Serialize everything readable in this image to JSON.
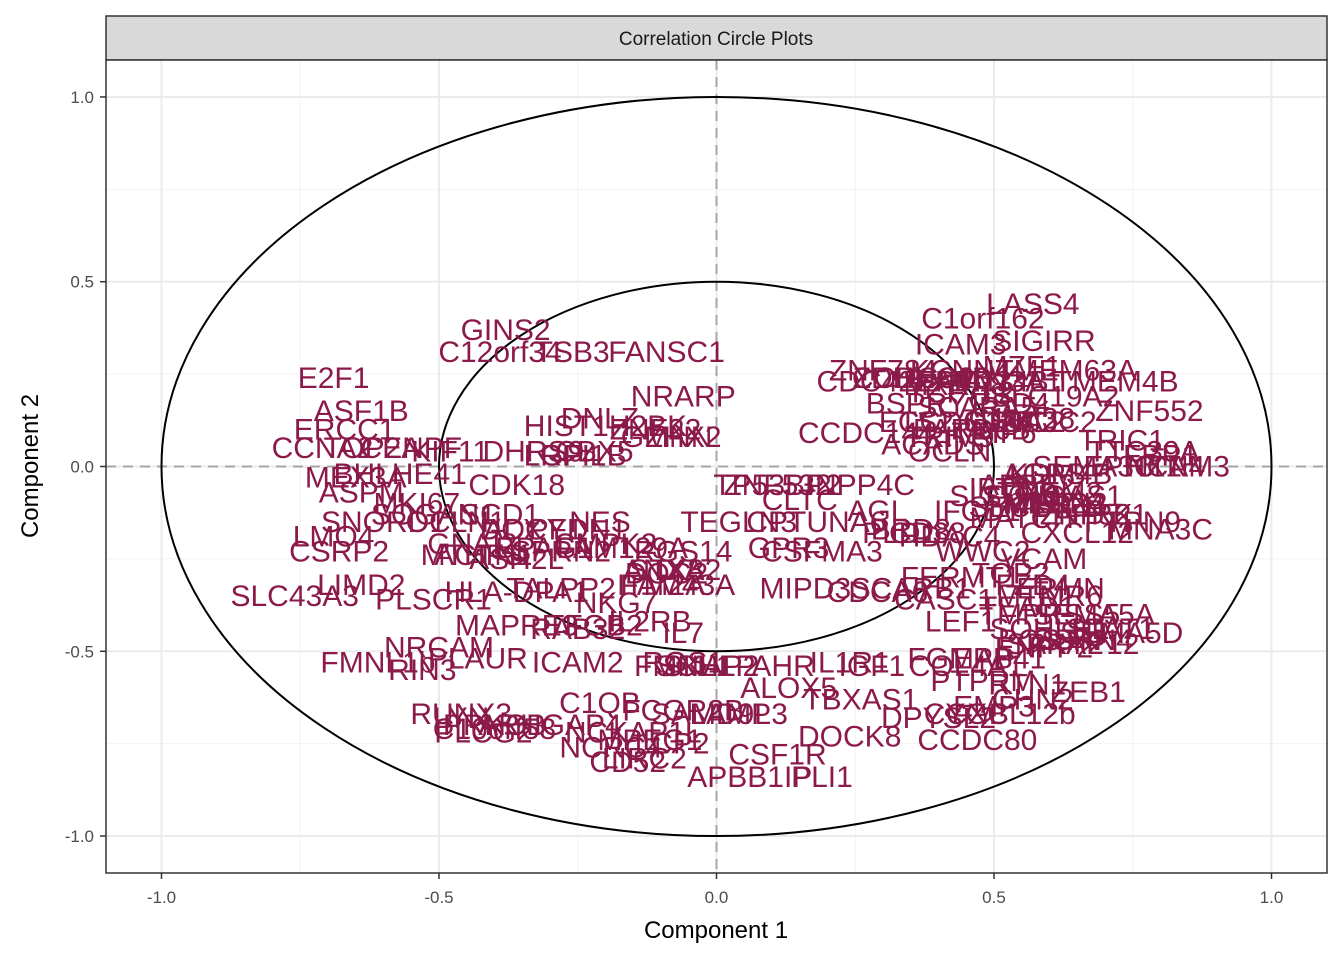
{
  "chart_data": {
    "type": "scatter",
    "title": "Correlation Circle Plots",
    "xlabel": "Component  1",
    "ylabel": "Component  2",
    "xlim": [
      -1.1,
      1.1
    ],
    "ylim": [
      -1.1,
      1.1
    ],
    "xticks": [
      -1.0,
      -0.5,
      0.0,
      0.5,
      1.0
    ],
    "yticks": [
      -1.0,
      -0.5,
      0.0,
      0.5,
      1.0
    ],
    "xtick_labels": [
      "-1.0",
      "-0.5",
      "0.0",
      "0.5",
      "1.0"
    ],
    "ytick_labels": [
      "-1.0",
      "-0.5",
      "0.0",
      "0.5",
      "1.0"
    ],
    "grid": true,
    "circles": [
      1.0,
      0.5
    ],
    "reference_lines": [
      0,
      0
    ],
    "label_color": "#8B1A4A",
    "points": [
      {
        "label": "LASS4",
        "x": 0.57,
        "y": 0.44
      },
      {
        "label": "C1orf162",
        "x": 0.48,
        "y": 0.4
      },
      {
        "label": "ICAM3",
        "x": 0.44,
        "y": 0.33
      },
      {
        "label": "SIGIRR",
        "x": 0.59,
        "y": 0.34
      },
      {
        "label": "TMEM63A",
        "x": 0.63,
        "y": 0.26
      },
      {
        "label": "ZNF784",
        "x": 0.3,
        "y": 0.26
      },
      {
        "label": "CCDC64B",
        "x": 0.37,
        "y": 0.24
      },
      {
        "label": "KCNN4",
        "x": 0.44,
        "y": 0.26
      },
      {
        "label": "BTN3A1",
        "x": 0.52,
        "y": 0.23
      },
      {
        "label": "CDC42EP5",
        "x": 0.32,
        "y": 0.23
      },
      {
        "label": "MZF1",
        "x": 0.55,
        "y": 0.27
      },
      {
        "label": "ZDHHC20",
        "x": 0.37,
        "y": 0.24
      },
      {
        "label": "MXRA8",
        "x": 0.43,
        "y": 0.22
      },
      {
        "label": "FAM134B",
        "x": 0.48,
        "y": 0.23
      },
      {
        "label": "BSPRY",
        "x": 0.36,
        "y": 0.17
      },
      {
        "label": "PSD4",
        "x": 0.53,
        "y": 0.17
      },
      {
        "label": "SLC19A2",
        "x": 0.61,
        "y": 0.19
      },
      {
        "label": "TCF7L2",
        "x": 0.44,
        "y": 0.2
      },
      {
        "label": "TMEM4B",
        "x": 0.72,
        "y": 0.23
      },
      {
        "label": "ZNF552",
        "x": 0.78,
        "y": 0.15
      },
      {
        "label": "C1orf38",
        "x": 0.55,
        "y": 0.13
      },
      {
        "label": "CCDC124",
        "x": 0.45,
        "y": 0.12
      },
      {
        "label": "STAC2",
        "x": 0.53,
        "y": 0.12
      },
      {
        "label": "STC2",
        "x": 0.56,
        "y": 0.12
      },
      {
        "label": "PARD6B",
        "x": 0.46,
        "y": 0.1
      },
      {
        "label": "DNAJC2",
        "x": 0.58,
        "y": 0.12
      },
      {
        "label": "SCARA5",
        "x": 0.47,
        "y": 0.16
      },
      {
        "label": "TRIP6",
        "x": 0.5,
        "y": 0.09
      },
      {
        "label": "TRIM9",
        "x": 0.42,
        "y": 0.08
      },
      {
        "label": "ACADS",
        "x": 0.39,
        "y": 0.06
      },
      {
        "label": "CCDC144",
        "x": 0.27,
        "y": 0.09
      },
      {
        "label": "OCLN",
        "x": 0.42,
        "y": 0.04
      },
      {
        "label": "ETS2",
        "x": 0.36,
        "y": 0.12
      },
      {
        "label": "TTC39A",
        "x": 0.77,
        "y": 0.04
      },
      {
        "label": "FBP1",
        "x": 0.8,
        "y": 0.03
      },
      {
        "label": "NTN4",
        "x": 0.81,
        "y": 0.0
      },
      {
        "label": "SEMA3C",
        "x": 0.68,
        "y": 0.0
      },
      {
        "label": "EPHX1",
        "x": 0.75,
        "y": 0.0
      },
      {
        "label": "CAM3",
        "x": 0.85,
        "y": 0.0
      },
      {
        "label": "KDM4B",
        "x": 0.62,
        "y": -0.02
      },
      {
        "label": "AGPS",
        "x": 0.59,
        "y": -0.02
      },
      {
        "label": "APBB2",
        "x": 0.56,
        "y": -0.05
      },
      {
        "label": "IFT8",
        "x": 0.51,
        "y": -0.06
      },
      {
        "label": "SLC6A9",
        "x": 0.52,
        "y": -0.08
      },
      {
        "label": "TRIC1",
        "x": 0.73,
        "y": 0.07
      },
      {
        "label": "MKRN3",
        "x": 0.61,
        "y": -0.1
      },
      {
        "label": "GAS1",
        "x": 0.66,
        "y": -0.08
      },
      {
        "label": "TMEM2",
        "x": 0.6,
        "y": -0.07
      },
      {
        "label": "PTPRK",
        "x": 0.66,
        "y": -0.13
      },
      {
        "label": "MED24",
        "x": 0.61,
        "y": -0.1
      },
      {
        "label": "SUN1",
        "x": 0.55,
        "y": -0.08
      },
      {
        "label": "SEC14L1",
        "x": 0.57,
        "y": -0.11
      },
      {
        "label": "IFCD1",
        "x": 0.47,
        "y": -0.12
      },
      {
        "label": "MATCH",
        "x": 0.55,
        "y": -0.14
      },
      {
        "label": "MNA3C",
        "x": 0.8,
        "y": -0.17
      },
      {
        "label": "PTPN9",
        "x": 0.75,
        "y": -0.15
      },
      {
        "label": "CXCL12",
        "x": 0.65,
        "y": -0.18
      },
      {
        "label": "ZNF521",
        "x": 0.68,
        "y": -0.13
      },
      {
        "label": "VCAM",
        "x": 0.59,
        "y": -0.25
      },
      {
        "label": "WWC2",
        "x": 0.48,
        "y": -0.23
      },
      {
        "label": "HDAC4",
        "x": 0.42,
        "y": -0.19
      },
      {
        "label": "TOP2",
        "x": 0.53,
        "y": -0.29
      },
      {
        "label": "CD38",
        "x": 0.38,
        "y": -0.18
      },
      {
        "label": "PLD1",
        "x": 0.33,
        "y": -0.18
      },
      {
        "label": "FERMT1",
        "x": 0.44,
        "y": -0.3
      },
      {
        "label": "FZD4",
        "x": 0.57,
        "y": -0.32
      },
      {
        "label": "ERMN",
        "x": 0.62,
        "y": -0.33
      },
      {
        "label": "MTMR6",
        "x": 0.6,
        "y": -0.35
      },
      {
        "label": "TEAD1",
        "x": 0.56,
        "y": -0.38
      },
      {
        "label": "CASC1",
        "x": 0.41,
        "y": -0.36
      },
      {
        "label": "CDCA6",
        "x": 0.29,
        "y": -0.34
      },
      {
        "label": "SCARB1",
        "x": 0.35,
        "y": -0.33
      },
      {
        "label": "TMPRSS5",
        "x": 0.6,
        "y": -0.4
      },
      {
        "label": "SEMA5A",
        "x": 0.68,
        "y": -0.4
      },
      {
        "label": "STAT1",
        "x": 0.71,
        "y": -0.44
      },
      {
        "label": "SEMA5D",
        "x": 0.73,
        "y": -0.45
      },
      {
        "label": "SOHLH1",
        "x": 0.6,
        "y": -0.44
      },
      {
        "label": "LEF1",
        "x": 0.44,
        "y": -0.42
      },
      {
        "label": "POSTN",
        "x": 0.6,
        "y": -0.47
      },
      {
        "label": "SSRN4",
        "x": 0.66,
        "y": -0.47
      },
      {
        "label": "AKAP12",
        "x": 0.66,
        "y": -0.48
      },
      {
        "label": "SPRY2",
        "x": 0.61,
        "y": -0.48
      },
      {
        "label": "ENPP2",
        "x": 0.59,
        "y": -0.49
      },
      {
        "label": "FGMAP",
        "x": 0.44,
        "y": -0.52
      },
      {
        "label": "COL4A1",
        "x": 0.45,
        "y": -0.54
      },
      {
        "label": "EPB41",
        "x": 0.51,
        "y": -0.52
      },
      {
        "label": "PTPRM",
        "x": 0.48,
        "y": -0.58
      },
      {
        "label": "ZEB1",
        "x": 0.67,
        "y": -0.61
      },
      {
        "label": "RTN1",
        "x": 0.56,
        "y": -0.59
      },
      {
        "label": "CHN2",
        "x": 0.57,
        "y": -0.63
      },
      {
        "label": "AHR",
        "x": 0.12,
        "y": -0.54
      },
      {
        "label": "IL1R1",
        "x": 0.24,
        "y": -0.53
      },
      {
        "label": "IGF1",
        "x": 0.28,
        "y": -0.54
      },
      {
        "label": "ALOX5",
        "x": 0.13,
        "y": -0.6
      },
      {
        "label": "TBXAS1",
        "x": 0.26,
        "y": -0.63
      },
      {
        "label": "DOCK8",
        "x": 0.24,
        "y": -0.73
      },
      {
        "label": "DPYSL2",
        "x": 0.4,
        "y": -0.68
      },
      {
        "label": "CYGB",
        "x": 0.45,
        "y": -0.67
      },
      {
        "label": "EMP3",
        "x": 0.5,
        "y": -0.65
      },
      {
        "label": "CXCL12b",
        "x": 0.53,
        "y": -0.67
      },
      {
        "label": "CCDC80",
        "x": 0.47,
        "y": -0.74
      },
      {
        "label": "CSF1R",
        "x": 0.11,
        "y": -0.78
      },
      {
        "label": "APBB1IP",
        "x": 0.06,
        "y": -0.84
      },
      {
        "label": "PLI1",
        "x": 0.19,
        "y": -0.84
      },
      {
        "label": "MPEG1",
        "x": -0.12,
        "y": -0.74
      },
      {
        "label": "NCKAP1L",
        "x": -0.15,
        "y": -0.72
      },
      {
        "label": "LCP2",
        "x": -0.08,
        "y": -0.75
      },
      {
        "label": "FCGR2B",
        "x": -0.06,
        "y": -0.66
      },
      {
        "label": "SAMD9L",
        "x": -0.01,
        "y": -0.67
      },
      {
        "label": "LAMP3",
        "x": 0.04,
        "y": -0.67
      },
      {
        "label": "C1QB",
        "x": -0.21,
        "y": -0.64
      },
      {
        "label": "NCRC4",
        "x": -0.19,
        "y": -0.76
      },
      {
        "label": "LIRC2",
        "x": -0.13,
        "y": -0.79
      },
      {
        "label": "CD52",
        "x": -0.16,
        "y": -0.8
      },
      {
        "label": "SKAP2",
        "x": -0.01,
        "y": -0.54
      },
      {
        "label": "SCHLP",
        "x": -0.02,
        "y": -0.54
      },
      {
        "label": "FMNL1",
        "x": -0.06,
        "y": -0.54
      },
      {
        "label": "RGS1",
        "x": -0.06,
        "y": -0.53
      },
      {
        "label": "ICAM2",
        "x": -0.25,
        "y": -0.53
      },
      {
        "label": "RUNX3",
        "x": -0.46,
        "y": -0.67
      },
      {
        "label": "PRKCB",
        "x": -0.4,
        "y": -0.7
      },
      {
        "label": "ARHGAP4",
        "x": -0.3,
        "y": -0.7
      },
      {
        "label": "C10orf58",
        "x": -0.4,
        "y": -0.71
      },
      {
        "label": "LYN",
        "x": -0.46,
        "y": -0.68
      },
      {
        "label": "PLCG2",
        "x": -0.42,
        "y": -0.72
      },
      {
        "label": "FMNL1b",
        "x": -0.61,
        "y": -0.53
      },
      {
        "label": "RIN3",
        "x": -0.53,
        "y": -0.55
      },
      {
        "label": "NRCAM",
        "x": -0.5,
        "y": -0.49
      },
      {
        "label": "PLAUR",
        "x": -0.43,
        "y": -0.52
      },
      {
        "label": "MAPRE3",
        "x": -0.36,
        "y": -0.43
      },
      {
        "label": "TFGB2",
        "x": -0.22,
        "y": -0.43
      },
      {
        "label": "RAB32",
        "x": -0.25,
        "y": -0.44
      },
      {
        "label": "IL7",
        "x": -0.06,
        "y": -0.45
      },
      {
        "label": "IL2RB",
        "x": -0.12,
        "y": -0.42
      },
      {
        "label": "SLC43A3",
        "x": -0.76,
        "y": -0.35
      },
      {
        "label": "PLSCR1",
        "x": -0.51,
        "y": -0.36
      },
      {
        "label": "TALPP2",
        "x": -0.28,
        "y": -0.33
      },
      {
        "label": "NKG7",
        "x": -0.18,
        "y": -0.37
      },
      {
        "label": "ITM2A",
        "x": -0.1,
        "y": -0.32
      },
      {
        "label": "FAM43A",
        "x": -0.07,
        "y": -0.32
      },
      {
        "label": "LIMD2",
        "x": -0.64,
        "y": -0.32
      },
      {
        "label": "HLA-DPA1",
        "x": -0.36,
        "y": -0.34
      },
      {
        "label": "ANXA2",
        "x": -0.08,
        "y": -0.28
      },
      {
        "label": "CSRP2",
        "x": -0.68,
        "y": -0.23
      },
      {
        "label": "LMO4",
        "x": -0.69,
        "y": -0.19
      },
      {
        "label": "SNORD1",
        "x": -0.6,
        "y": -0.15
      },
      {
        "label": "ACTN1",
        "x": -0.42,
        "y": -0.24
      },
      {
        "label": "ASH2L",
        "x": -0.36,
        "y": -0.25
      },
      {
        "label": "BPAG1",
        "x": -0.31,
        "y": -0.22
      },
      {
        "label": "SPRN2",
        "x": -0.28,
        "y": -0.23
      },
      {
        "label": "FAM129A",
        "x": -0.17,
        "y": -0.22
      },
      {
        "label": "CMPK2",
        "x": -0.2,
        "y": -0.21
      },
      {
        "label": "RGS14",
        "x": -0.06,
        "y": -0.23
      },
      {
        "label": "STX8",
        "x": -0.09,
        "y": -0.28
      },
      {
        "label": "DOC2",
        "x": -0.09,
        "y": -0.29
      },
      {
        "label": "NES",
        "x": -0.21,
        "y": -0.15
      },
      {
        "label": "PFDN1",
        "x": -0.25,
        "y": -0.17
      },
      {
        "label": "ADCY1",
        "x": -0.33,
        "y": -0.17
      },
      {
        "label": "DCX",
        "x": -0.37,
        "y": -0.17
      },
      {
        "label": "GNAI2",
        "x": -0.44,
        "y": -0.21
      },
      {
        "label": "MTHFS",
        "x": -0.44,
        "y": -0.24
      },
      {
        "label": "OCLN1",
        "x": -0.47,
        "y": -0.15
      },
      {
        "label": "SOGAN1",
        "x": -0.51,
        "y": -0.13
      },
      {
        "label": "SCD1",
        "x": -0.39,
        "y": -0.13
      },
      {
        "label": "MKI67",
        "x": -0.54,
        "y": -0.1
      },
      {
        "label": "ASPM",
        "x": -0.64,
        "y": -0.07
      },
      {
        "label": "MEX3A",
        "x": -0.65,
        "y": -0.03
      },
      {
        "label": "CDK18",
        "x": -0.36,
        "y": -0.05
      },
      {
        "label": "BHLHE41",
        "x": -0.57,
        "y": -0.02
      },
      {
        "label": "CCNA2",
        "x": -0.71,
        "y": 0.05
      },
      {
        "label": "TOP2A",
        "x": -0.62,
        "y": 0.05
      },
      {
        "label": "CENPF",
        "x": -0.55,
        "y": 0.05
      },
      {
        "label": "KIF11",
        "x": -0.48,
        "y": 0.04
      },
      {
        "label": "DHRS9",
        "x": -0.33,
        "y": 0.04
      },
      {
        "label": "LRP4",
        "x": -0.28,
        "y": 0.03
      },
      {
        "label": "GFI1B",
        "x": -0.24,
        "y": 0.03
      },
      {
        "label": "CBX5",
        "x": -0.22,
        "y": 0.04
      },
      {
        "label": "HIST1H2BK",
        "x": -0.2,
        "y": 0.11
      },
      {
        "label": "DNLZ",
        "x": -0.21,
        "y": 0.13
      },
      {
        "label": "ZNF22",
        "x": -0.11,
        "y": 0.1
      },
      {
        "label": "GMNN",
        "x": -0.09,
        "y": 0.08
      },
      {
        "label": "ZHX2",
        "x": -0.06,
        "y": 0.08
      },
      {
        "label": "ERCC1",
        "x": -0.67,
        "y": 0.1
      },
      {
        "label": "ASF1B",
        "x": -0.64,
        "y": 0.15
      },
      {
        "label": "E2F1",
        "x": -0.69,
        "y": 0.24
      },
      {
        "label": "GINS2",
        "x": -0.38,
        "y": 0.37
      },
      {
        "label": "C12orf34",
        "x": -0.39,
        "y": 0.31
      },
      {
        "label": "FANSC1",
        "x": -0.09,
        "y": 0.31
      },
      {
        "label": "TSB3",
        "x": -0.26,
        "y": 0.31
      },
      {
        "label": "NRARP",
        "x": -0.06,
        "y": 0.19
      },
      {
        "label": "ZNF532",
        "x": 0.11,
        "y": -0.05
      },
      {
        "label": "TP53BP2",
        "x": 0.11,
        "y": -0.05
      },
      {
        "label": "TEGLN3",
        "x": 0.04,
        "y": -0.15
      },
      {
        "label": "CPTUNA6",
        "x": 0.18,
        "y": -0.15
      },
      {
        "label": "AGL",
        "x": 0.29,
        "y": -0.12
      },
      {
        "label": "INPP4C",
        "x": 0.26,
        "y": -0.05
      },
      {
        "label": "CLTC",
        "x": 0.15,
        "y": -0.09
      },
      {
        "label": "BRD8",
        "x": 0.35,
        "y": -0.17
      },
      {
        "label": "GPR3",
        "x": 0.13,
        "y": -0.22
      },
      {
        "label": "CSFMA3",
        "x": 0.19,
        "y": -0.23
      },
      {
        "label": "MIPD3",
        "x": 0.16,
        "y": -0.33
      }
    ]
  }
}
